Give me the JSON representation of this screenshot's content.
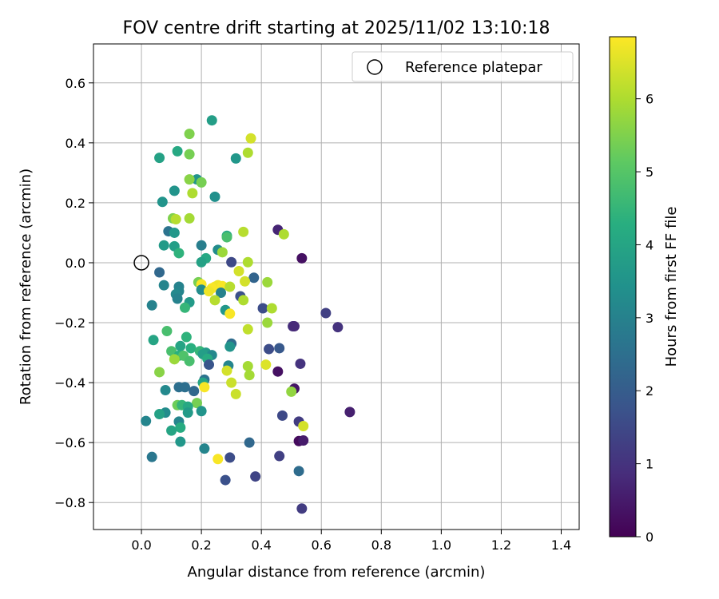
{
  "chart_data": {
    "type": "scatter",
    "title": "FOV centre drift starting at 2025/11/02 13:10:18",
    "xlabel": "Angular distance from reference (arcmin)",
    "ylabel": "Rotation from reference (arcmin)",
    "xlim": [
      -0.16,
      1.46
    ],
    "ylim": [
      -0.89,
      0.73
    ],
    "xticks": [
      0.0,
      0.2,
      0.4,
      0.6,
      0.8,
      1.0,
      1.2,
      1.4
    ],
    "xtick_labels": [
      "0.0",
      "0.2",
      "0.4",
      "0.6",
      "0.8",
      "1.0",
      "1.2",
      "1.4"
    ],
    "yticks": [
      -0.8,
      -0.6,
      -0.4,
      -0.2,
      0.0,
      0.2,
      0.4,
      0.6
    ],
    "ytick_labels": [
      "−0.8",
      "−0.6",
      "−0.4",
      "−0.2",
      "0.0",
      "0.2",
      "0.4",
      "0.6"
    ],
    "grid": true,
    "legend": {
      "position": "top-right",
      "entries": [
        "Reference platepar"
      ]
    },
    "reference_point": {
      "x": 0.0,
      "y": 0.0,
      "label": "Reference platepar"
    },
    "colorbar": {
      "label": "Hours from first FF file",
      "min": 0,
      "max": 6.85,
      "colormap": "viridis",
      "ticks": [
        0,
        1,
        2,
        3,
        4,
        5,
        6
      ],
      "tick_labels": [
        "0",
        "1",
        "2",
        "3",
        "4",
        "5",
        "6"
      ]
    },
    "points": [
      {
        "x": 0.235,
        "y": 0.475,
        "h": 3.8
      },
      {
        "x": 0.16,
        "y": 0.43,
        "h": 5.5
      },
      {
        "x": 0.365,
        "y": 0.415,
        "h": 6.4
      },
      {
        "x": 0.12,
        "y": 0.372,
        "h": 4.1
      },
      {
        "x": 0.06,
        "y": 0.35,
        "h": 3.9
      },
      {
        "x": 0.16,
        "y": 0.362,
        "h": 5.4
      },
      {
        "x": 0.315,
        "y": 0.348,
        "h": 3.6
      },
      {
        "x": 0.355,
        "y": 0.367,
        "h": 6.0
      },
      {
        "x": 0.185,
        "y": 0.278,
        "h": 3.5
      },
      {
        "x": 0.16,
        "y": 0.278,
        "h": 5.6
      },
      {
        "x": 0.2,
        "y": 0.268,
        "h": 5.4
      },
      {
        "x": 0.11,
        "y": 0.24,
        "h": 3.5
      },
      {
        "x": 0.17,
        "y": 0.232,
        "h": 6.0
      },
      {
        "x": 0.245,
        "y": 0.22,
        "h": 3.4
      },
      {
        "x": 0.07,
        "y": 0.203,
        "h": 3.5
      },
      {
        "x": 0.105,
        "y": 0.148,
        "h": 5.5
      },
      {
        "x": 0.115,
        "y": 0.145,
        "h": 6.1
      },
      {
        "x": 0.16,
        "y": 0.148,
        "h": 5.9
      },
      {
        "x": 0.09,
        "y": 0.105,
        "h": 2.6
      },
      {
        "x": 0.11,
        "y": 0.1,
        "h": 3.6
      },
      {
        "x": 0.455,
        "y": 0.11,
        "h": 0.7
      },
      {
        "x": 0.34,
        "y": 0.103,
        "h": 6.1
      },
      {
        "x": 0.475,
        "y": 0.095,
        "h": 6.0
      },
      {
        "x": 0.285,
        "y": 0.09,
        "h": 4.1
      },
      {
        "x": 0.285,
        "y": 0.085,
        "h": 4.8
      },
      {
        "x": 0.075,
        "y": 0.058,
        "h": 3.7
      },
      {
        "x": 0.2,
        "y": 0.058,
        "h": 2.9
      },
      {
        "x": 0.11,
        "y": 0.055,
        "h": 3.8
      },
      {
        "x": 0.255,
        "y": 0.043,
        "h": 3.3
      },
      {
        "x": 0.27,
        "y": 0.035,
        "h": 5.8
      },
      {
        "x": 0.125,
        "y": 0.032,
        "h": 4.4
      },
      {
        "x": 0.215,
        "y": 0.015,
        "h": 4.1
      },
      {
        "x": 0.535,
        "y": 0.015,
        "h": 0.3
      },
      {
        "x": 0.2,
        "y": 0.002,
        "h": 3.9
      },
      {
        "x": 0.3,
        "y": 0.002,
        "h": 1.5
      },
      {
        "x": 0.355,
        "y": 0.002,
        "h": 6.0
      },
      {
        "x": 0.06,
        "y": -0.032,
        "h": 2.3
      },
      {
        "x": 0.325,
        "y": -0.028,
        "h": 6.4
      },
      {
        "x": 0.375,
        "y": -0.05,
        "h": 2.2
      },
      {
        "x": 0.345,
        "y": -0.062,
        "h": 6.4
      },
      {
        "x": 0.42,
        "y": -0.065,
        "h": 5.8
      },
      {
        "x": 0.19,
        "y": -0.065,
        "h": 5.4
      },
      {
        "x": 0.2,
        "y": -0.072,
        "h": 6.8
      },
      {
        "x": 0.075,
        "y": -0.075,
        "h": 3.1
      },
      {
        "x": 0.125,
        "y": -0.08,
        "h": 3.0
      },
      {
        "x": 0.245,
        "y": -0.08,
        "h": 6.8
      },
      {
        "x": 0.255,
        "y": -0.075,
        "h": 6.7
      },
      {
        "x": 0.27,
        "y": -0.078,
        "h": 6.8
      },
      {
        "x": 0.295,
        "y": -0.08,
        "h": 6.1
      },
      {
        "x": 0.235,
        "y": -0.085,
        "h": 6.8
      },
      {
        "x": 0.125,
        "y": -0.095,
        "h": 3.1
      },
      {
        "x": 0.2,
        "y": -0.09,
        "h": 3.3
      },
      {
        "x": 0.225,
        "y": -0.095,
        "h": 6.7
      },
      {
        "x": 0.265,
        "y": -0.1,
        "h": 3.0
      },
      {
        "x": 0.115,
        "y": -0.105,
        "h": 3.2
      },
      {
        "x": 0.12,
        "y": -0.12,
        "h": 3.0
      },
      {
        "x": 0.33,
        "y": -0.112,
        "h": 1.7
      },
      {
        "x": 0.34,
        "y": -0.125,
        "h": 6.0
      },
      {
        "x": 0.245,
        "y": -0.125,
        "h": 6.1
      },
      {
        "x": 0.16,
        "y": -0.132,
        "h": 3.7
      },
      {
        "x": 0.035,
        "y": -0.142,
        "h": 3.0
      },
      {
        "x": 0.145,
        "y": -0.15,
        "h": 4.5
      },
      {
        "x": 0.405,
        "y": -0.152,
        "h": 1.6
      },
      {
        "x": 0.435,
        "y": -0.152,
        "h": 6.0
      },
      {
        "x": 0.28,
        "y": -0.158,
        "h": 3.6
      },
      {
        "x": 0.615,
        "y": -0.168,
        "h": 1.3
      },
      {
        "x": 0.295,
        "y": -0.17,
        "h": 6.8
      },
      {
        "x": 0.42,
        "y": -0.2,
        "h": 5.8
      },
      {
        "x": 0.505,
        "y": -0.212,
        "h": 0.9
      },
      {
        "x": 0.51,
        "y": -0.212,
        "h": 0.8
      },
      {
        "x": 0.655,
        "y": -0.215,
        "h": 1.0
      },
      {
        "x": 0.355,
        "y": -0.222,
        "h": 6.2
      },
      {
        "x": 0.085,
        "y": -0.228,
        "h": 4.8
      },
      {
        "x": 0.15,
        "y": -0.248,
        "h": 4.4
      },
      {
        "x": 0.04,
        "y": -0.258,
        "h": 4.0
      },
      {
        "x": 0.3,
        "y": -0.27,
        "h": 2.4
      },
      {
        "x": 0.295,
        "y": -0.28,
        "h": 3.5
      },
      {
        "x": 0.13,
        "y": -0.278,
        "h": 4.0
      },
      {
        "x": 0.165,
        "y": -0.285,
        "h": 4.3
      },
      {
        "x": 0.425,
        "y": -0.288,
        "h": 1.6
      },
      {
        "x": 0.46,
        "y": -0.285,
        "h": 1.9
      },
      {
        "x": 0.1,
        "y": -0.295,
        "h": 4.8
      },
      {
        "x": 0.195,
        "y": -0.295,
        "h": 4.5
      },
      {
        "x": 0.215,
        "y": -0.3,
        "h": 3.7
      },
      {
        "x": 0.125,
        "y": -0.31,
        "h": 4.3
      },
      {
        "x": 0.14,
        "y": -0.31,
        "h": 4.9
      },
      {
        "x": 0.205,
        "y": -0.305,
        "h": 3.8
      },
      {
        "x": 0.235,
        "y": -0.308,
        "h": 3.2
      },
      {
        "x": 0.22,
        "y": -0.32,
        "h": 4.2
      },
      {
        "x": 0.11,
        "y": -0.322,
        "h": 5.8
      },
      {
        "x": 0.16,
        "y": -0.328,
        "h": 4.8
      },
      {
        "x": 0.225,
        "y": -0.34,
        "h": 1.8
      },
      {
        "x": 0.29,
        "y": -0.343,
        "h": 3.1
      },
      {
        "x": 0.355,
        "y": -0.345,
        "h": 5.9
      },
      {
        "x": 0.415,
        "y": -0.34,
        "h": 6.5
      },
      {
        "x": 0.53,
        "y": -0.337,
        "h": 1.0
      },
      {
        "x": 0.285,
        "y": -0.36,
        "h": 6.4
      },
      {
        "x": 0.06,
        "y": -0.365,
        "h": 5.6
      },
      {
        "x": 0.455,
        "y": -0.363,
        "h": 0.3
      },
      {
        "x": 0.36,
        "y": -0.375,
        "h": 5.9
      },
      {
        "x": 0.21,
        "y": -0.39,
        "h": 2.6
      },
      {
        "x": 0.3,
        "y": -0.4,
        "h": 6.3
      },
      {
        "x": 0.205,
        "y": -0.4,
        "h": 4.0
      },
      {
        "x": 0.21,
        "y": -0.415,
        "h": 6.8
      },
      {
        "x": 0.125,
        "y": -0.415,
        "h": 2.5
      },
      {
        "x": 0.145,
        "y": -0.415,
        "h": 2.5
      },
      {
        "x": 0.08,
        "y": -0.425,
        "h": 3.2
      },
      {
        "x": 0.175,
        "y": -0.428,
        "h": 2.3
      },
      {
        "x": 0.51,
        "y": -0.42,
        "h": 0.4
      },
      {
        "x": 0.5,
        "y": -0.43,
        "h": 5.7
      },
      {
        "x": 0.315,
        "y": -0.438,
        "h": 6.3
      },
      {
        "x": 0.185,
        "y": -0.468,
        "h": 5.4
      },
      {
        "x": 0.12,
        "y": -0.475,
        "h": 5.3
      },
      {
        "x": 0.135,
        "y": -0.475,
        "h": 4.5
      },
      {
        "x": 0.155,
        "y": -0.48,
        "h": 4.1
      },
      {
        "x": 0.155,
        "y": -0.5,
        "h": 3.7
      },
      {
        "x": 0.08,
        "y": -0.5,
        "h": 3.3
      },
      {
        "x": 0.2,
        "y": -0.495,
        "h": 3.5
      },
      {
        "x": 0.06,
        "y": -0.505,
        "h": 3.9
      },
      {
        "x": 0.695,
        "y": -0.498,
        "h": 0.6
      },
      {
        "x": 0.47,
        "y": -0.51,
        "h": 1.5
      },
      {
        "x": 0.125,
        "y": -0.53,
        "h": 3.1
      },
      {
        "x": 0.015,
        "y": -0.528,
        "h": 3.1
      },
      {
        "x": 0.525,
        "y": -0.53,
        "h": 1.2
      },
      {
        "x": 0.13,
        "y": -0.55,
        "h": 4.2
      },
      {
        "x": 0.54,
        "y": -0.545,
        "h": 6.4
      },
      {
        "x": 0.1,
        "y": -0.56,
        "h": 4.0
      },
      {
        "x": 0.525,
        "y": -0.595,
        "h": 0.2
      },
      {
        "x": 0.54,
        "y": -0.593,
        "h": 0.5
      },
      {
        "x": 0.13,
        "y": -0.597,
        "h": 3.6
      },
      {
        "x": 0.36,
        "y": -0.6,
        "h": 2.3
      },
      {
        "x": 0.21,
        "y": -0.62,
        "h": 3.1
      },
      {
        "x": 0.46,
        "y": -0.645,
        "h": 1.3
      },
      {
        "x": 0.035,
        "y": -0.648,
        "h": 2.7
      },
      {
        "x": 0.295,
        "y": -0.65,
        "h": 1.6
      },
      {
        "x": 0.255,
        "y": -0.655,
        "h": 6.8
      },
      {
        "x": 0.525,
        "y": -0.695,
        "h": 2.4
      },
      {
        "x": 0.38,
        "y": -0.713,
        "h": 1.4
      },
      {
        "x": 0.28,
        "y": -0.725,
        "h": 1.7
      },
      {
        "x": 0.535,
        "y": -0.82,
        "h": 1.2
      }
    ]
  }
}
